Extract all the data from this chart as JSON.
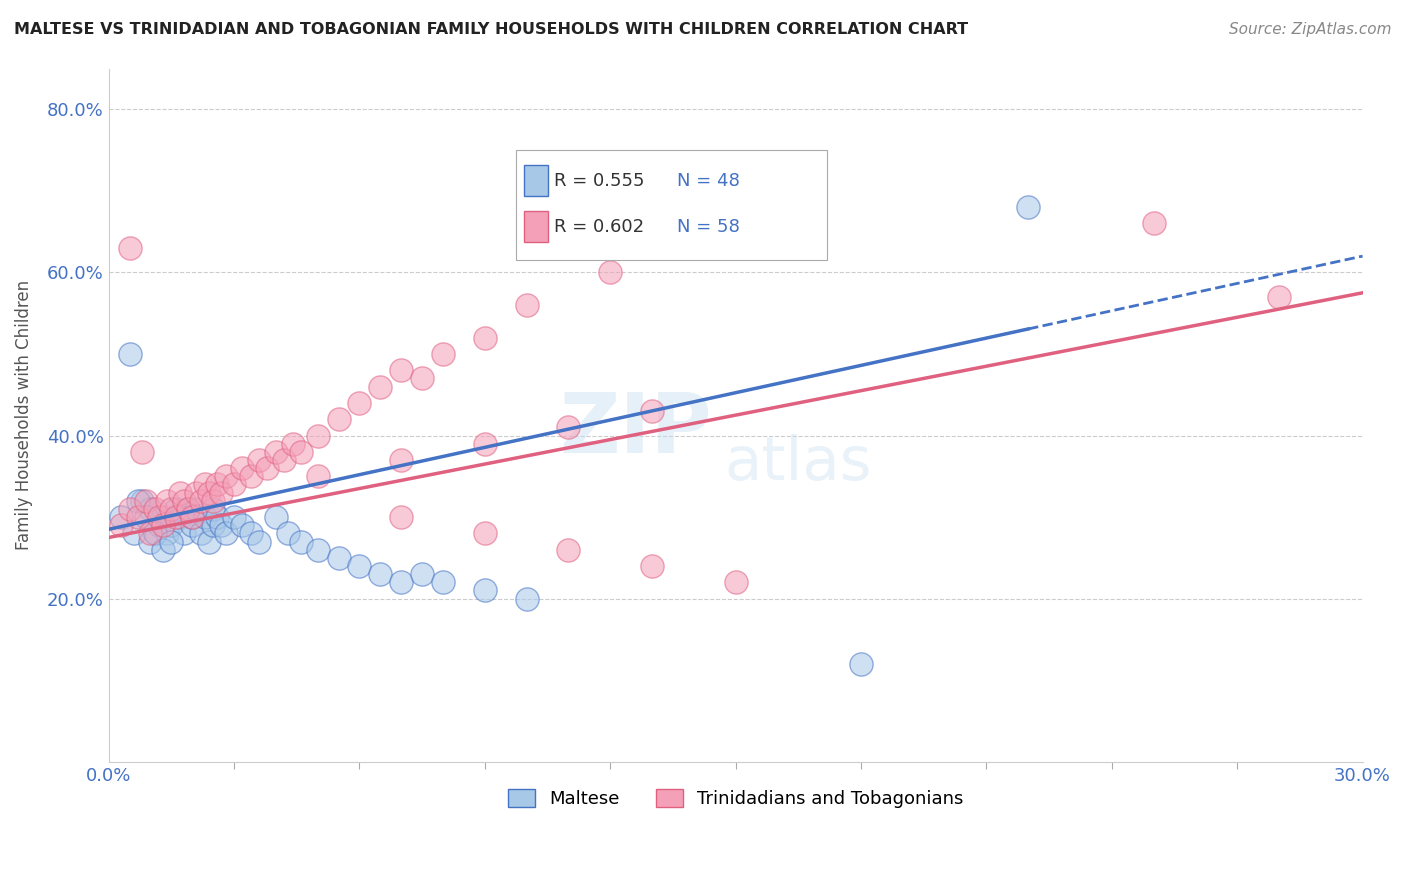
{
  "title": "MALTESE VS TRINIDADIAN AND TOBAGONIAN FAMILY HOUSEHOLDS WITH CHILDREN CORRELATION CHART",
  "source": "Source: ZipAtlas.com",
  "ylabel": "Family Households with Children",
  "xlim": [
    0.0,
    0.3
  ],
  "ylim": [
    0.0,
    0.85
  ],
  "x_tick_labels": [
    "0.0%",
    "30.0%"
  ],
  "y_ticks": [
    0.2,
    0.4,
    0.6,
    0.8
  ],
  "y_tick_labels": [
    "20.0%",
    "40.0%",
    "60.0%",
    "80.0%"
  ],
  "maltese_color": "#a8c8e8",
  "trinidadian_color": "#f4a0b8",
  "maltese_line_color": "#4472c4",
  "trinidadian_line_color": "#e06080",
  "R_maltese": 0.555,
  "N_maltese": 48,
  "R_trinidadian": 0.602,
  "N_trinidadian": 58,
  "maltese_scatter_x": [
    0.003,
    0.006,
    0.008,
    0.01,
    0.01,
    0.012,
    0.013,
    0.014,
    0.015,
    0.016,
    0.017,
    0.018,
    0.019,
    0.02,
    0.02,
    0.021,
    0.022,
    0.023,
    0.024,
    0.025,
    0.025,
    0.026,
    0.027,
    0.028,
    0.03,
    0.032,
    0.034,
    0.036,
    0.04,
    0.043,
    0.046,
    0.05,
    0.055,
    0.06,
    0.065,
    0.07,
    0.075,
    0.08,
    0.09,
    0.1,
    0.005,
    0.007,
    0.009,
    0.011,
    0.013,
    0.015,
    0.18,
    0.22
  ],
  "maltese_scatter_y": [
    0.3,
    0.28,
    0.32,
    0.27,
    0.31,
    0.29,
    0.3,
    0.28,
    0.29,
    0.31,
    0.3,
    0.28,
    0.31,
    0.29,
    0.3,
    0.31,
    0.28,
    0.3,
    0.27,
    0.29,
    0.31,
    0.3,
    0.29,
    0.28,
    0.3,
    0.29,
    0.28,
    0.27,
    0.3,
    0.28,
    0.27,
    0.26,
    0.25,
    0.24,
    0.23,
    0.22,
    0.23,
    0.22,
    0.21,
    0.2,
    0.5,
    0.32,
    0.3,
    0.28,
    0.26,
    0.27,
    0.12,
    0.68
  ],
  "trinidadian_scatter_x": [
    0.003,
    0.005,
    0.007,
    0.009,
    0.01,
    0.011,
    0.012,
    0.013,
    0.014,
    0.015,
    0.016,
    0.017,
    0.018,
    0.019,
    0.02,
    0.021,
    0.022,
    0.023,
    0.024,
    0.025,
    0.026,
    0.027,
    0.028,
    0.03,
    0.032,
    0.034,
    0.036,
    0.038,
    0.04,
    0.042,
    0.044,
    0.046,
    0.05,
    0.055,
    0.06,
    0.065,
    0.07,
    0.075,
    0.08,
    0.09,
    0.1,
    0.12,
    0.14,
    0.16,
    0.05,
    0.07,
    0.09,
    0.11,
    0.13,
    0.25,
    0.07,
    0.09,
    0.11,
    0.13,
    0.15,
    0.28,
    0.005,
    0.008
  ],
  "trinidadian_scatter_y": [
    0.29,
    0.31,
    0.3,
    0.32,
    0.28,
    0.31,
    0.3,
    0.29,
    0.32,
    0.31,
    0.3,
    0.33,
    0.32,
    0.31,
    0.3,
    0.33,
    0.32,
    0.34,
    0.33,
    0.32,
    0.34,
    0.33,
    0.35,
    0.34,
    0.36,
    0.35,
    0.37,
    0.36,
    0.38,
    0.37,
    0.39,
    0.38,
    0.4,
    0.42,
    0.44,
    0.46,
    0.48,
    0.47,
    0.5,
    0.52,
    0.56,
    0.6,
    0.65,
    0.67,
    0.35,
    0.37,
    0.39,
    0.41,
    0.43,
    0.66,
    0.3,
    0.28,
    0.26,
    0.24,
    0.22,
    0.57,
    0.63,
    0.38
  ],
  "maltese_trend_x": [
    0.0,
    0.3
  ],
  "maltese_trend_y": [
    0.285,
    0.62
  ],
  "trinidadian_trend_x": [
    0.0,
    0.3
  ],
  "trinidadian_trend_y": [
    0.275,
    0.575
  ]
}
